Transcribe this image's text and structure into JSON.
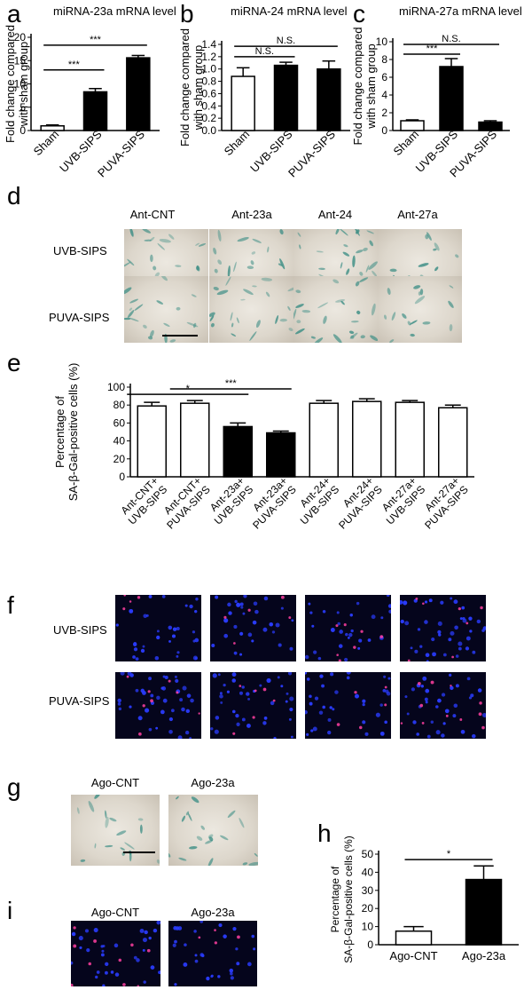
{
  "panels": {
    "a": "a",
    "b": "b",
    "c": "c",
    "d": "d",
    "e": "e",
    "f": "f",
    "g": "g",
    "h": "h",
    "i": "i"
  },
  "row_labels": {
    "uvb": "UVB-SIPS",
    "puva": "PUVA-SIPS"
  },
  "col_labels": {
    "ant_cnt": "Ant-CNT",
    "ant_23a": "Ant-23a",
    "ant_24": "Ant-24",
    "ant_27a": "Ant-27a",
    "ago_cnt": "Ago-CNT",
    "ago_23a": "Ago-23a"
  },
  "colors": {
    "filled": "#000000",
    "empty": "#ffffff",
    "stroke": "#000000",
    "bf_stain": "#3f8f86",
    "fl_nuclei": "#2a3cff",
    "fl_signal": "#ff3fa0"
  },
  "chart_data": [
    {
      "id": "a",
      "type": "bar",
      "title": "miRNA-23a mRNA level",
      "ylabel": "Fold change compared with sham group",
      "ylim": [
        0,
        20
      ],
      "yticks": [
        0,
        5,
        10,
        15,
        20
      ],
      "categories": [
        "Sham",
        "UVB-SIPS",
        "PUVA-SIPS"
      ],
      "values": [
        1.0,
        8.3,
        15.6
      ],
      "errors": [
        0.2,
        0.7,
        0.5
      ],
      "fills": [
        "white",
        "black",
        "black"
      ],
      "annotations": [
        {
          "from": 0,
          "to": 1,
          "level": 13,
          "label": "***"
        },
        {
          "from": 0,
          "to": 2,
          "level": 18.3,
          "label": "***"
        }
      ]
    },
    {
      "id": "b",
      "type": "bar",
      "title": "miRNA-24 mRNA level",
      "ylabel": "Fold change compared with sham group",
      "ylim": [
        0,
        1.4
      ],
      "yticks": [
        0,
        0.2,
        0.4,
        0.6,
        0.8,
        1.0,
        1.2,
        1.4
      ],
      "categories": [
        "Sham",
        "UVB-SIPS",
        "PUVA-SIPS"
      ],
      "values": [
        0.88,
        1.06,
        1.0
      ],
      "errors": [
        0.14,
        0.05,
        0.13
      ],
      "fills": [
        "white",
        "black",
        "black"
      ],
      "annotations": [
        {
          "from": 0,
          "to": 1,
          "level": 1.2,
          "label": "N.S."
        },
        {
          "from": 0,
          "to": 2,
          "level": 1.37,
          "label": "N.S."
        }
      ]
    },
    {
      "id": "c",
      "type": "bar",
      "title": "miRNA-27a mRNA level",
      "ylabel": "Fold change compared with sham group",
      "ylim": [
        0,
        10
      ],
      "yticks": [
        0,
        2,
        4,
        6,
        8,
        10
      ],
      "categories": [
        "Sham",
        "UVB-SIPS",
        "PUVA-SIPS"
      ],
      "values": [
        1.1,
        7.2,
        0.95
      ],
      "errors": [
        0.1,
        0.9,
        0.15
      ],
      "fills": [
        "white",
        "black",
        "black"
      ],
      "annotations": [
        {
          "from": 0,
          "to": 1,
          "level": 8.6,
          "label": "***"
        },
        {
          "from": 0,
          "to": 2,
          "level": 9.7,
          "label": "N.S."
        }
      ]
    },
    {
      "id": "e",
      "type": "bar",
      "title": "",
      "ylabel": "Percentage of SA-β-Gal-positive cells (%)",
      "ylim": [
        0,
        100
      ],
      "yticks": [
        0,
        20,
        40,
        60,
        80,
        100
      ],
      "categories": [
        "Ant-CNT+ UVB-SIPS",
        "Ant-CNT+ PUVA-SIPS",
        "Ant-23a+ UVB-SIPS",
        "Ant-23a+ PUVA-SIPS",
        "Ant-24+ UVB-SIPS",
        "Ant-24+ PUVA-SIPS",
        "Ant-27a+ UVB-SIPS",
        "Ant-27a+ PUVA-SIPS"
      ],
      "values": [
        79,
        82,
        56,
        49,
        82,
        84,
        83,
        77
      ],
      "errors": [
        4,
        3,
        4,
        2,
        3,
        3,
        2,
        3
      ],
      "fills": [
        "white",
        "white",
        "black",
        "black",
        "white",
        "white",
        "white",
        "white"
      ],
      "annotations": [
        {
          "from": 0,
          "to": 2,
          "level": 92,
          "label": "*"
        },
        {
          "from": 1,
          "to": 3,
          "level": 98,
          "label": "***"
        }
      ]
    },
    {
      "id": "h",
      "type": "bar",
      "title": "",
      "ylabel": "Percentage of SA-β-Gal-positive cells (%)",
      "ylim": [
        0,
        50
      ],
      "yticks": [
        0,
        10,
        20,
        30,
        40,
        50
      ],
      "categories": [
        "Ago-CNT",
        "Ago-23a"
      ],
      "values": [
        7.5,
        36
      ],
      "errors": [
        2.5,
        7.5
      ],
      "fills": [
        "white",
        "black"
      ],
      "annotations": [
        {
          "from": 0,
          "to": 1,
          "level": 47,
          "label": "*"
        }
      ]
    }
  ]
}
